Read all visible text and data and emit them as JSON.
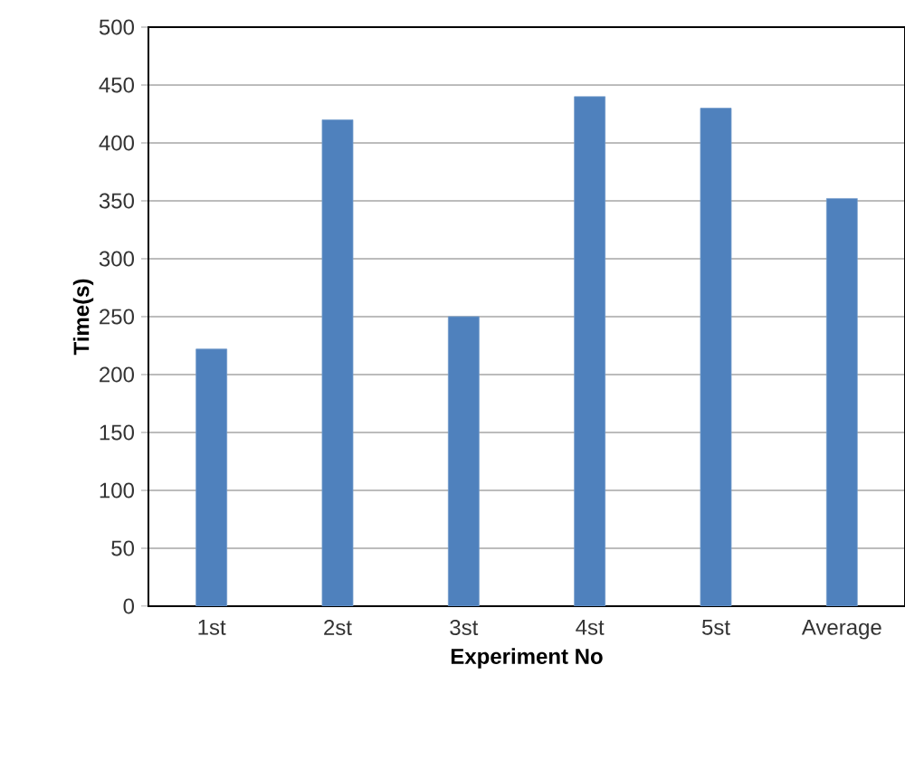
{
  "chart_data": {
    "type": "bar",
    "xlabel": "Experiment No",
    "ylabel": "Time(s)",
    "categories": [
      "1st",
      "2st",
      "3st",
      "4st",
      "5st",
      "Average"
    ],
    "values": [
      222,
      420,
      250,
      440,
      430,
      352
    ],
    "color": "#4f81bd",
    "ylim": [
      0,
      500
    ],
    "yticks": [
      0,
      50,
      100,
      150,
      200,
      250,
      300,
      350,
      400,
      450,
      500
    ],
    "grid": "y"
  }
}
